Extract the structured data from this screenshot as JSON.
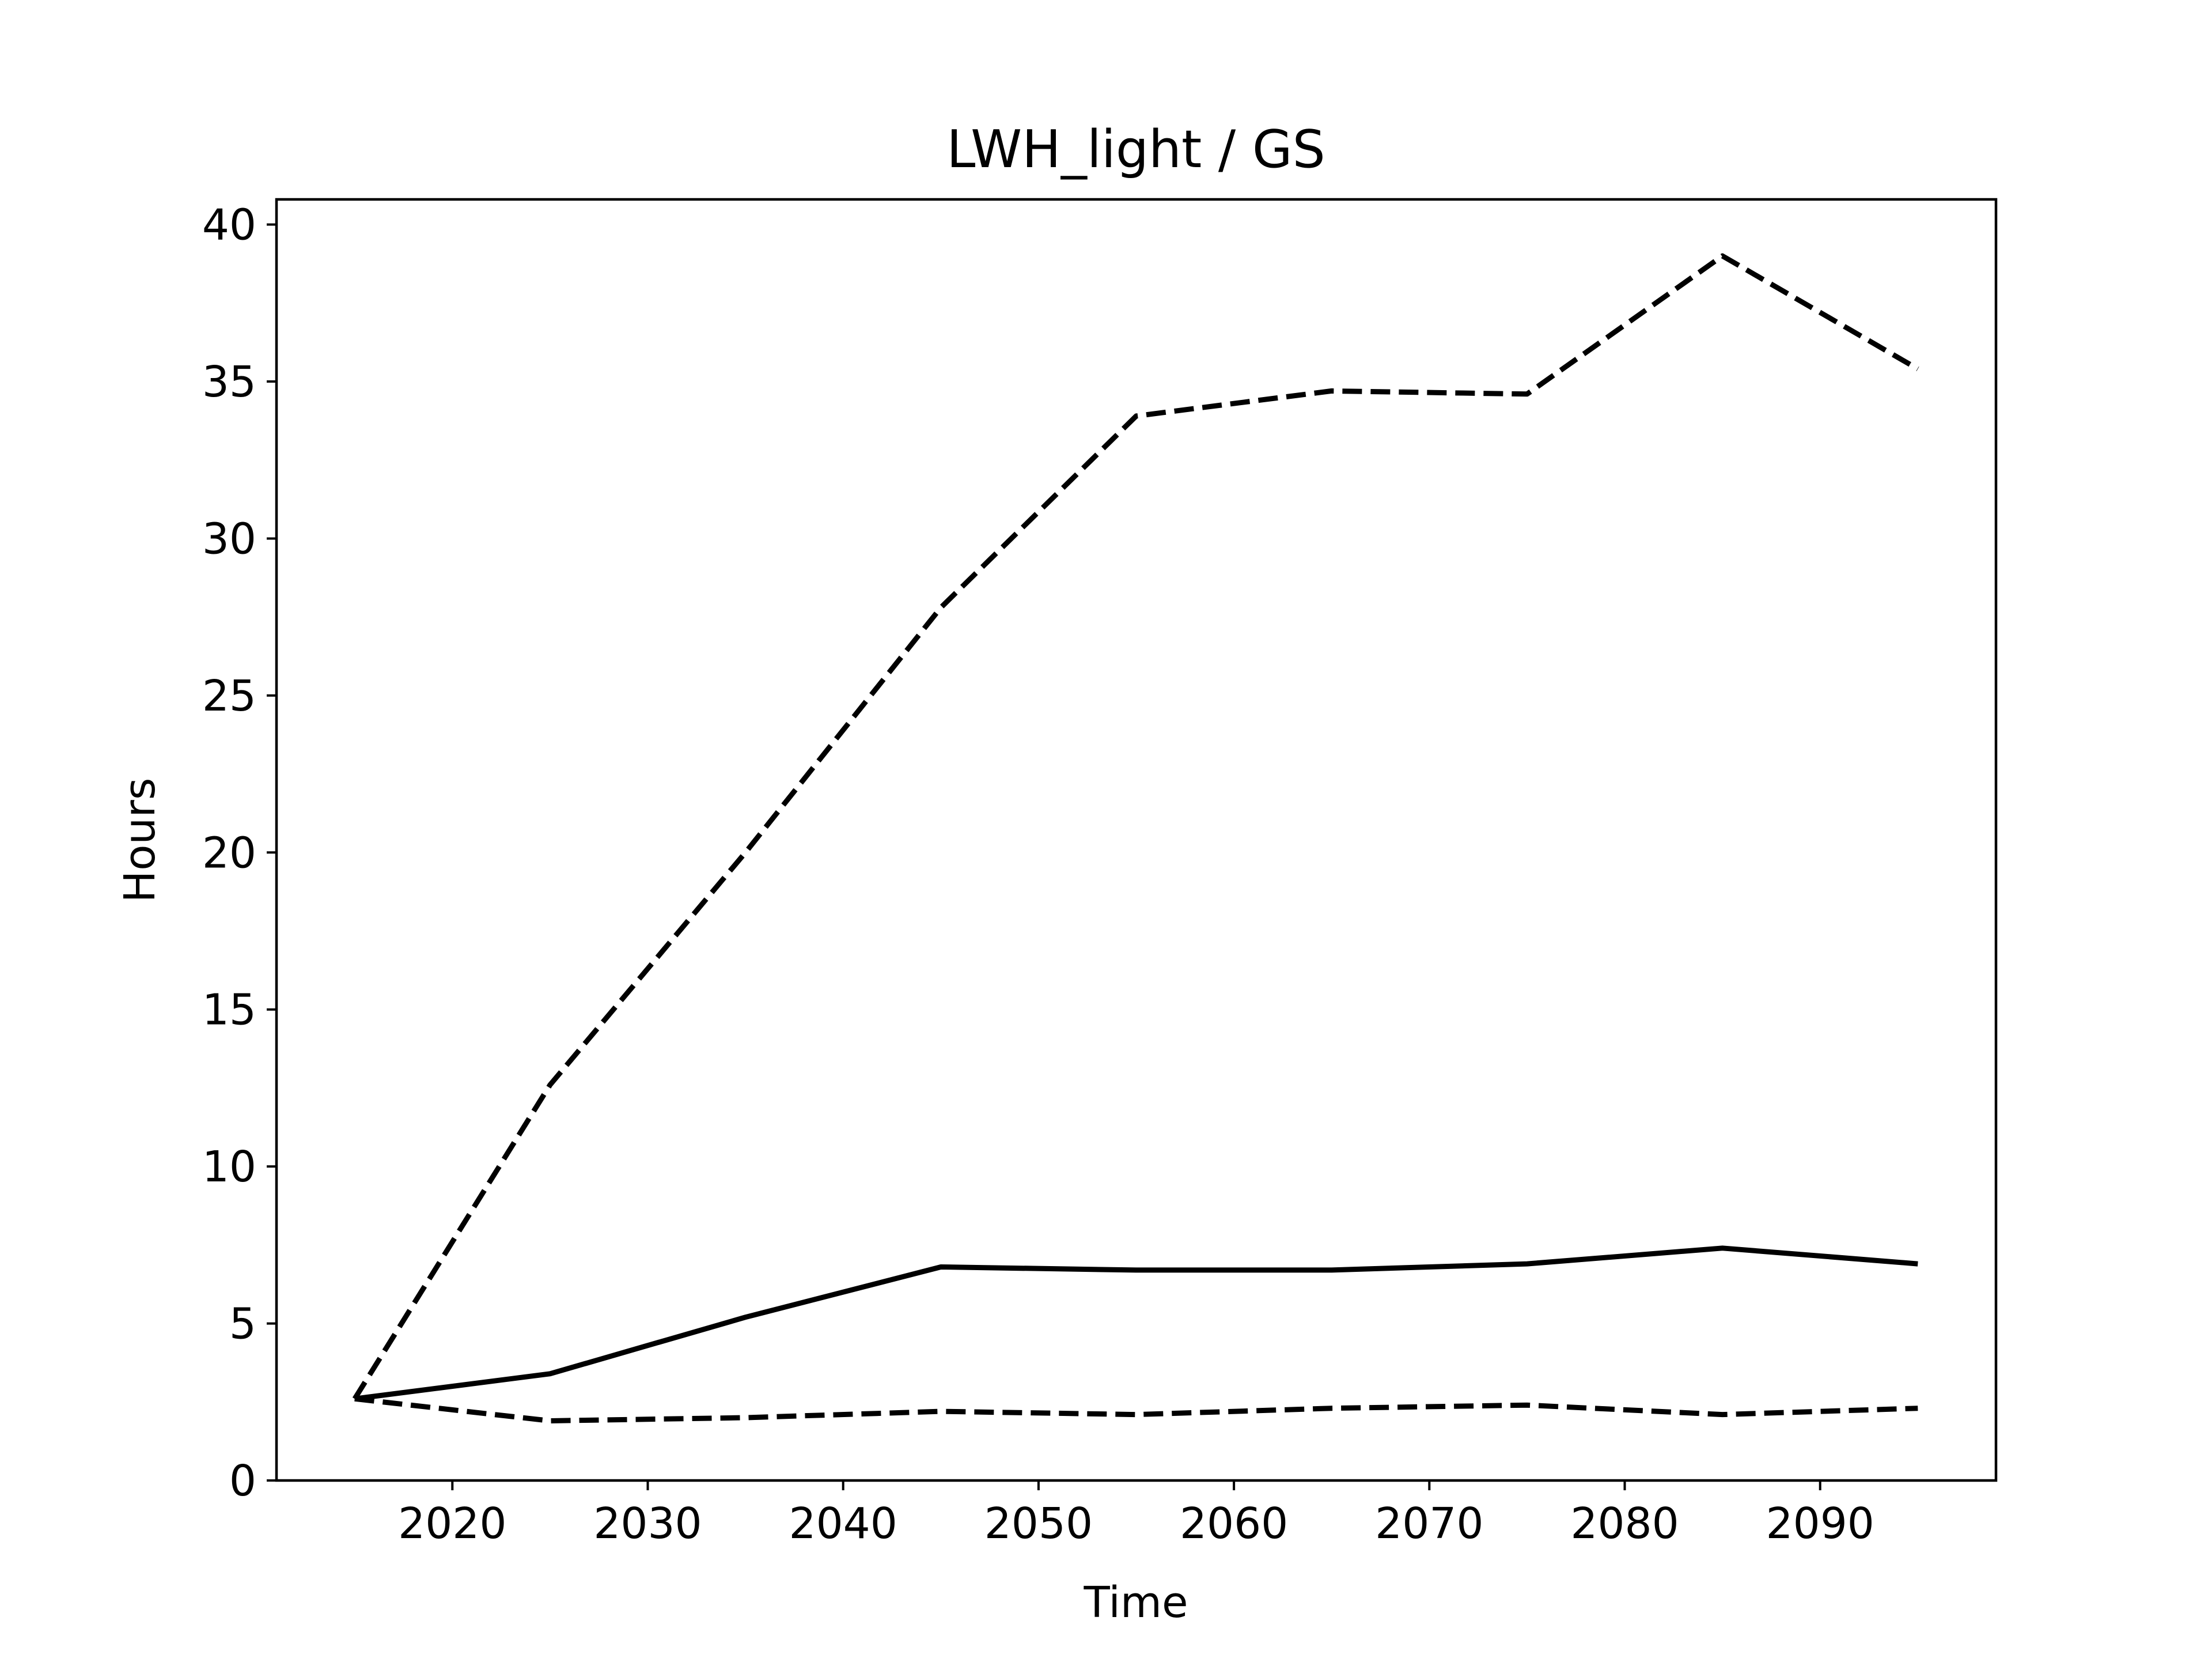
{
  "chart_data": {
    "type": "line",
    "title": "LWH_light / GS",
    "xlabel": "Time",
    "ylabel": "Hours",
    "xlim": [
      2011,
      2099
    ],
    "ylim": [
      0,
      40.8
    ],
    "xticks": [
      2020,
      2030,
      2040,
      2050,
      2060,
      2070,
      2080,
      2090
    ],
    "yticks": [
      0,
      5,
      10,
      15,
      20,
      25,
      30,
      35,
      40
    ],
    "grid": false,
    "legend": "none",
    "line_color": "#000000",
    "x": [
      2015,
      2025,
      2035,
      2045,
      2055,
      2065,
      2075,
      2085,
      2095
    ],
    "series": [
      {
        "style": "dashed",
        "values": [
          2.6,
          12.6,
          20.0,
          27.8,
          33.9,
          34.7,
          34.6,
          39.0,
          35.4
        ]
      },
      {
        "style": "solid",
        "values": [
          2.6,
          3.4,
          5.2,
          6.8,
          6.7,
          6.7,
          6.9,
          7.4,
          6.9
        ]
      },
      {
        "style": "dashed",
        "values": [
          2.6,
          1.9,
          2.0,
          2.2,
          2.1,
          2.3,
          2.4,
          2.1,
          2.3
        ]
      }
    ]
  }
}
